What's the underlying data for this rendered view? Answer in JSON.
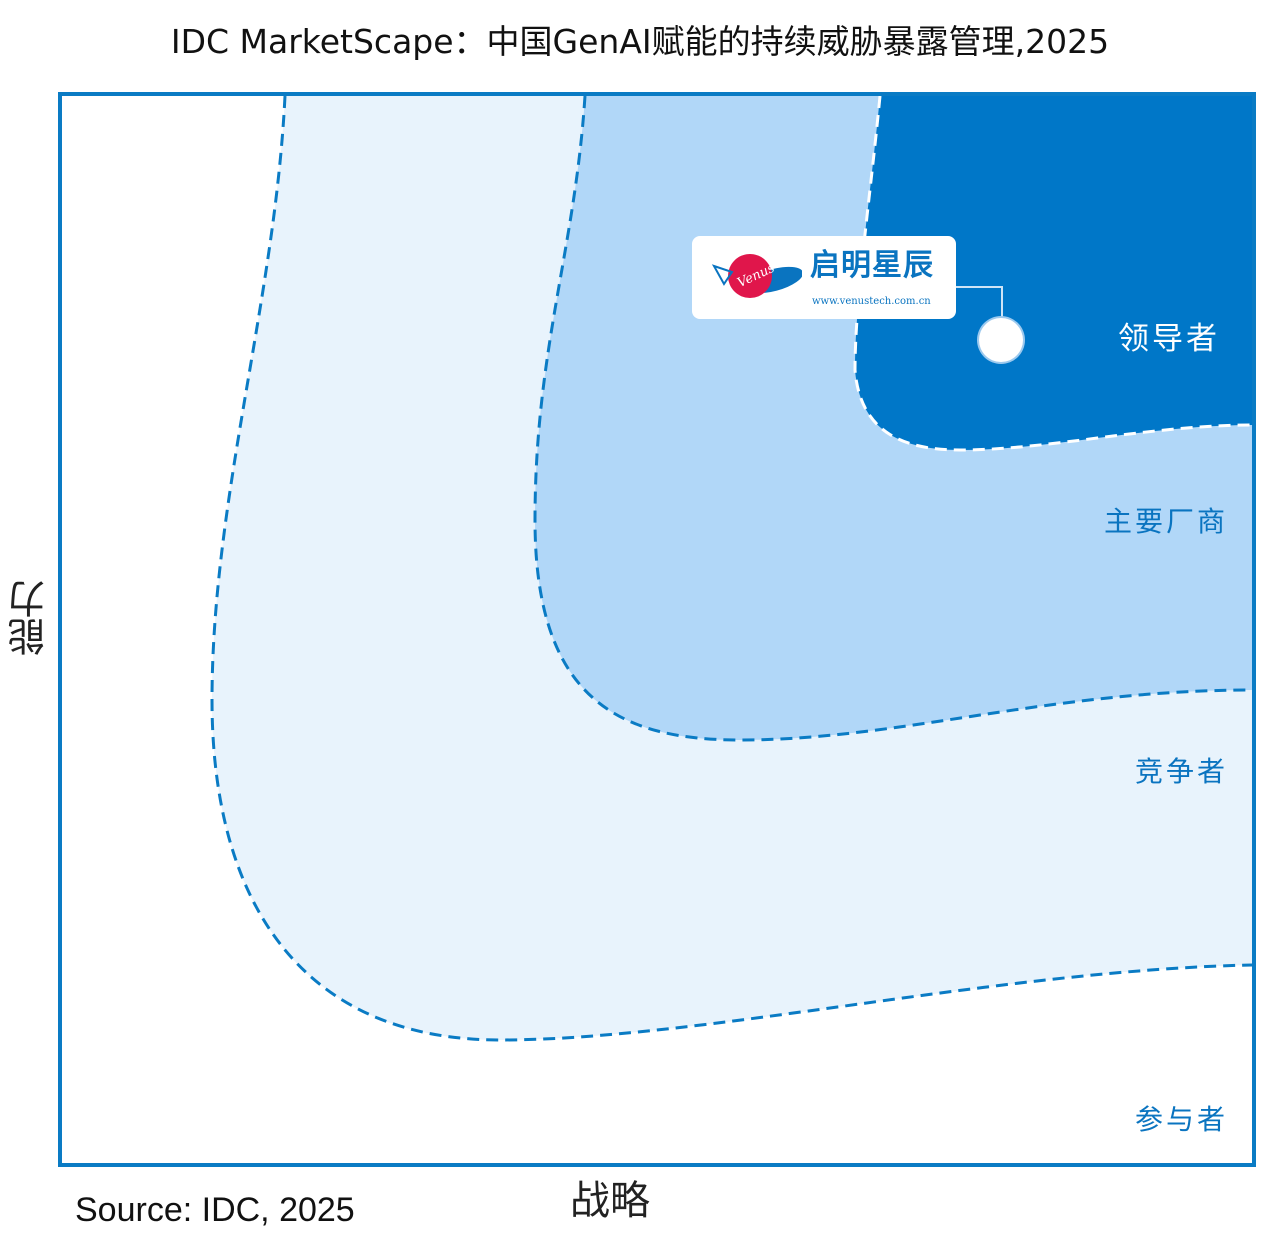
{
  "title": "IDC MarketScape：中国GenAI赋能的持续威胁暴露管理,2025",
  "axes": {
    "y_label": "能力",
    "x_label": "战略"
  },
  "segments": [
    {
      "label": "领导者",
      "color": "#0077c8"
    },
    {
      "label": "主要厂商",
      "color": "#b1d7f8"
    },
    {
      "label": "竞争者",
      "color": "#e8f3fc"
    },
    {
      "label": "参与者",
      "color": "#ffffff"
    }
  ],
  "vendors": [
    {
      "name": "启明星辰",
      "logo_text": "Venus",
      "url_text": "www.venustech.com.cn",
      "segment": "领导者"
    }
  ],
  "source": "Source: IDC, 2025",
  "colors": {
    "border": "#0a7bc4",
    "dashed": "#0a7bc4"
  }
}
